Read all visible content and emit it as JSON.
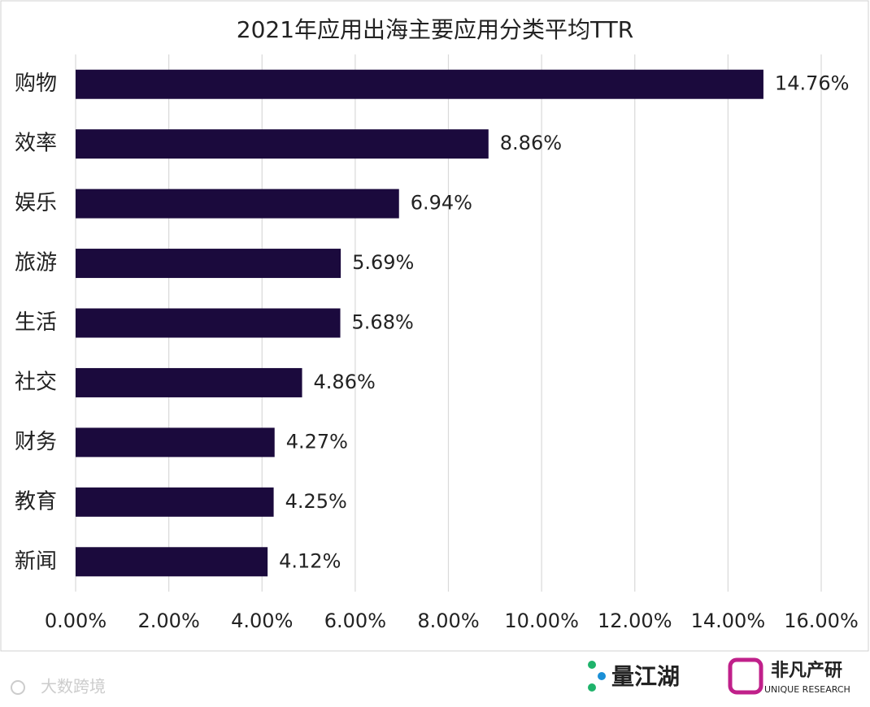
{
  "chart_data": {
    "type": "bar",
    "orientation": "horizontal",
    "title": "2021年应用出海主要应用分类平均TTR",
    "categories": [
      "购物",
      "效率",
      "娱乐",
      "旅游",
      "生活",
      "社交",
      "财务",
      "教育",
      "新闻"
    ],
    "values": [
      14.76,
      8.86,
      6.94,
      5.69,
      5.68,
      4.86,
      4.27,
      4.25,
      4.12
    ],
    "value_labels": [
      "14.76%",
      "8.86%",
      "6.94%",
      "5.69%",
      "5.68%",
      "4.86%",
      "4.27%",
      "4.25%",
      "4.12%"
    ],
    "color": "#1b0a3d",
    "xlim": [
      0,
      16
    ],
    "xticks": [
      {
        "value": 0,
        "label": "0.00%"
      },
      {
        "value": 2,
        "label": "2.00%"
      },
      {
        "value": 4,
        "label": "4.00%"
      },
      {
        "value": 6,
        "label": "6.00%"
      },
      {
        "value": 8,
        "label": "8.00%"
      },
      {
        "value": 10,
        "label": "10.00%"
      },
      {
        "value": 12,
        "label": "12.00%"
      },
      {
        "value": 14,
        "label": "14.00%"
      },
      {
        "value": 16,
        "label": "16.00%"
      }
    ],
    "grid": true
  },
  "logos": {
    "left": "量江湖",
    "right": "非凡产研",
    "right_sub": "UNIQUE RESEARCH",
    "watermark": "大数跨境"
  }
}
